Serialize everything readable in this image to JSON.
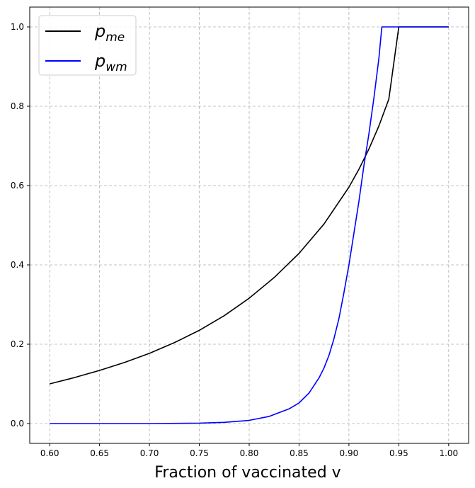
{
  "chart_data": {
    "type": "line",
    "xlabel": "Fraction of vaccinated v",
    "ylabel": "",
    "title": "",
    "xlim": [
      0.58,
      1.02
    ],
    "ylim": [
      -0.05,
      1.05
    ],
    "xticks": [
      "0.60",
      "0.65",
      "0.70",
      "0.75",
      "0.80",
      "0.85",
      "0.90",
      "0.95",
      "1.00"
    ],
    "yticks": [
      "0.0",
      "0.2",
      "0.4",
      "0.6",
      "0.8",
      "1.0"
    ],
    "grid": true,
    "legend_position": "upper left",
    "series": [
      {
        "name": "p_me",
        "label_base": "p",
        "label_sub": "me",
        "color": "#000000",
        "x": [
          0.6,
          0.625,
          0.65,
          0.675,
          0.7,
          0.725,
          0.75,
          0.775,
          0.8,
          0.825,
          0.85,
          0.875,
          0.9,
          0.91,
          0.92,
          0.93,
          0.94,
          0.95,
          0.96,
          0.97,
          0.98,
          0.99,
          1.0
        ],
        "y": [
          0.1,
          0.116,
          0.134,
          0.154,
          0.177,
          0.204,
          0.235,
          0.272,
          0.316,
          0.368,
          0.429,
          0.503,
          0.596,
          0.641,
          0.692,
          0.75,
          0.818,
          1.0,
          1.0,
          1.0,
          1.0,
          1.0,
          1.0
        ]
      },
      {
        "name": "p_wm",
        "label_base": "p",
        "label_sub": "wm",
        "color": "#0000ff",
        "x": [
          0.6,
          0.7,
          0.75,
          0.775,
          0.8,
          0.82,
          0.84,
          0.85,
          0.86,
          0.87,
          0.875,
          0.88,
          0.885,
          0.89,
          0.895,
          0.9,
          0.905,
          0.91,
          0.915,
          0.92,
          0.925,
          0.93,
          0.933,
          0.95,
          1.0
        ],
        "y": [
          0.0,
          0.0,
          0.001,
          0.003,
          0.008,
          0.018,
          0.037,
          0.052,
          0.077,
          0.115,
          0.14,
          0.172,
          0.214,
          0.265,
          0.33,
          0.4,
          0.48,
          0.56,
          0.65,
          0.73,
          0.82,
          0.92,
          1.0,
          1.0,
          1.0
        ]
      }
    ]
  }
}
